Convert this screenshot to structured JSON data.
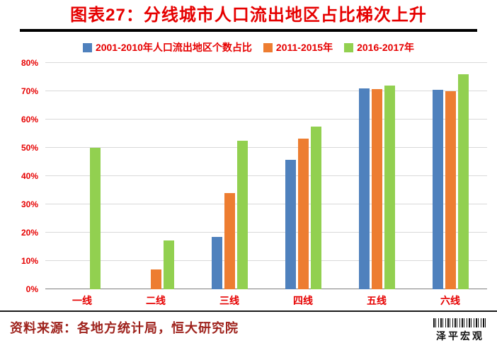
{
  "title": "图表27：分线城市人口流出地区占比梯次上升",
  "colors": {
    "red": "#e60000",
    "source_red": "#9e221c"
  },
  "chart_data": {
    "type": "bar",
    "title": "图表27：分线城市人口流出地区占比梯次上升",
    "categories": [
      "一线",
      "二线",
      "三线",
      "四线",
      "五线",
      "六线"
    ],
    "series": [
      {
        "name": "2001-2010年人口流出地区个数占比",
        "color": "#4f81bd",
        "values": [
          0,
          0,
          18.5,
          45.8,
          71,
          70.6
        ]
      },
      {
        "name": "2011-2015年",
        "color": "#ed7d31",
        "values": [
          0,
          7,
          33.9,
          53.2,
          70.7,
          70
        ]
      },
      {
        "name": "2016-2017年",
        "color": "#92d050",
        "values": [
          50,
          17.3,
          52.4,
          57.4,
          72,
          75.9
        ]
      }
    ],
    "xlabel": "",
    "ylabel": "",
    "ylim": [
      0,
      80
    ],
    "ytick_step": 10,
    "ytick_format": "percent",
    "grid": true,
    "legend_position": "top"
  },
  "source": "资料来源：各地方统计局，恒大研究院",
  "watermark": "泽平宏观"
}
